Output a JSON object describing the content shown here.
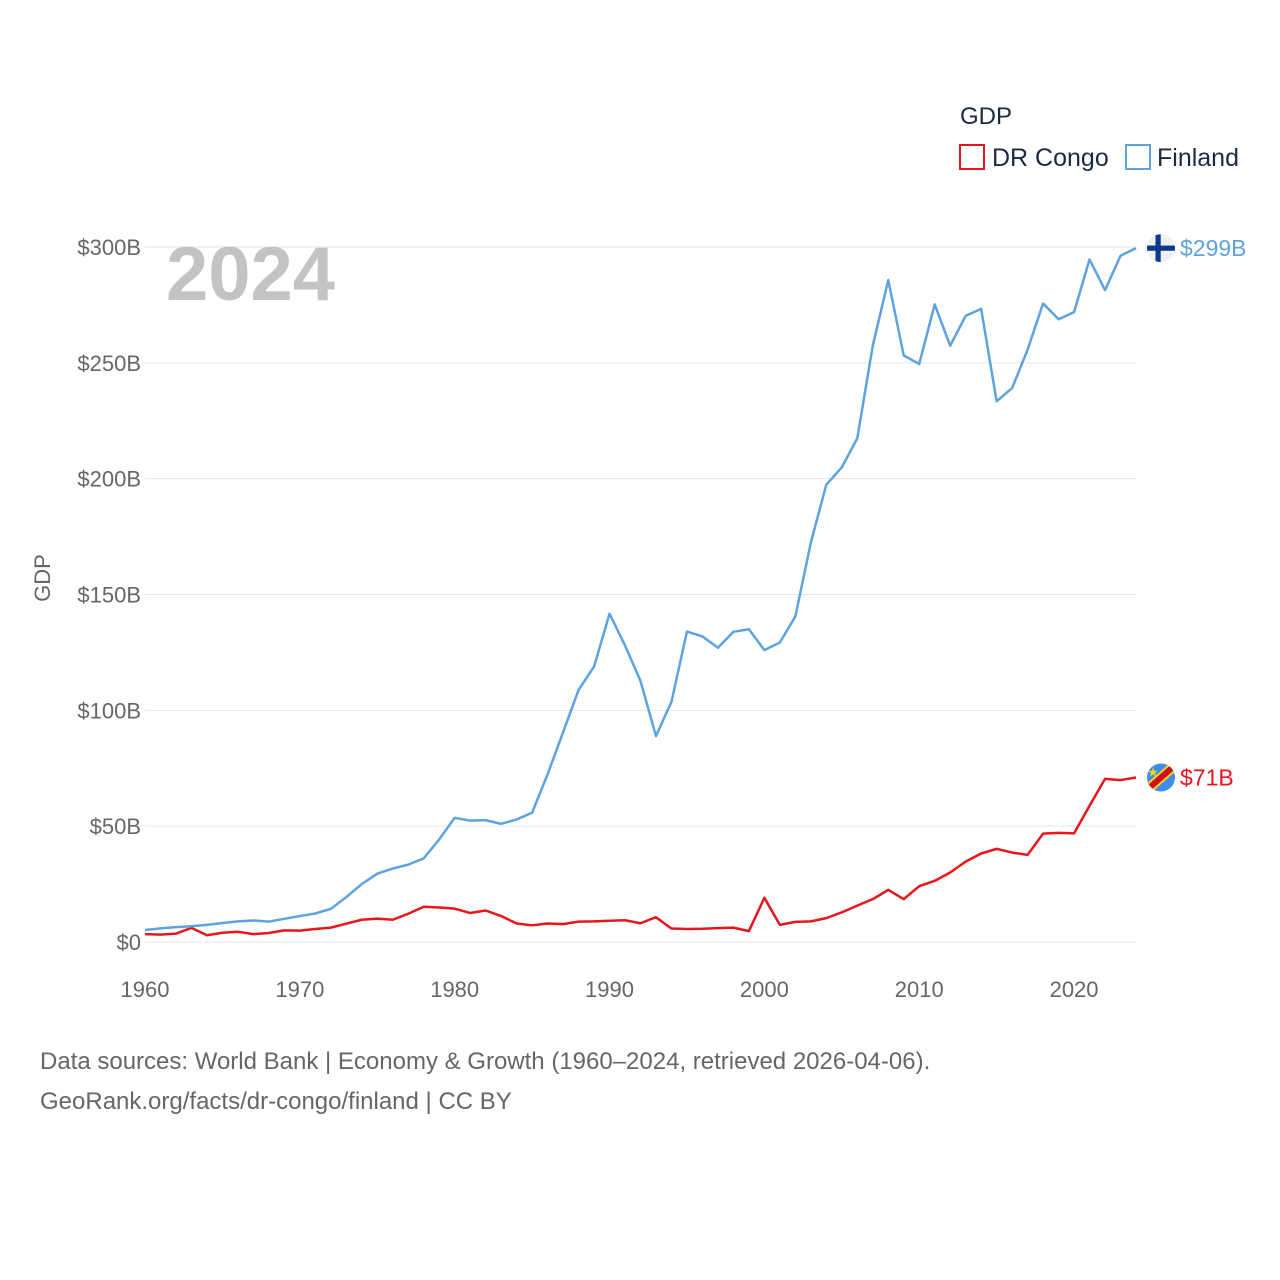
{
  "chart_data": {
    "type": "line",
    "title": "GDP",
    "ylabel": "GDP",
    "year_label": "2024",
    "ylim": [
      0,
      300
    ],
    "xlim": [
      1960,
      2024
    ],
    "y_ticks": [
      {
        "value": 0,
        "label": "$0"
      },
      {
        "value": 50,
        "label": "$50B"
      },
      {
        "value": 100,
        "label": "$100B"
      },
      {
        "value": 150,
        "label": "$150B"
      },
      {
        "value": 200,
        "label": "$200B"
      },
      {
        "value": 250,
        "label": "$250B"
      },
      {
        "value": 300,
        "label": "$300B"
      }
    ],
    "x_ticks": [
      {
        "value": 1960,
        "label": "1960"
      },
      {
        "value": 1970,
        "label": "1970"
      },
      {
        "value": 1980,
        "label": "1980"
      },
      {
        "value": 1990,
        "label": "1990"
      },
      {
        "value": 2000,
        "label": "2000"
      },
      {
        "value": 2010,
        "label": "2010"
      },
      {
        "value": 2020,
        "label": "2020"
      }
    ],
    "x_start": 1960,
    "series": [
      {
        "name": "DR Congo",
        "color": "#e8161c",
        "end_label": "$71B",
        "flag": "drc-flag-icon",
        "values": [
          3.4,
          3.2,
          3.6,
          6.1,
          2.9,
          4.0,
          4.4,
          3.4,
          3.9,
          5.0,
          4.9,
          5.6,
          6.2,
          7.9,
          9.6,
          10.1,
          9.6,
          12.2,
          15.2,
          14.9,
          14.4,
          12.5,
          13.6,
          11.2,
          8.0,
          7.2,
          8.0,
          7.7,
          8.8,
          8.9,
          9.2,
          9.4,
          8.1,
          10.7,
          5.8,
          5.6,
          5.7,
          6.0,
          6.2,
          4.7,
          19.1,
          7.4,
          8.7,
          8.9,
          10.3,
          12.8,
          15.7,
          18.5,
          22.5,
          18.5,
          24.1,
          26.4,
          30.0,
          34.7,
          38.2,
          40.2,
          38.6,
          37.6,
          46.8,
          47.1,
          46.9,
          58.8,
          70.4,
          69.9,
          71.0
        ]
      },
      {
        "name": "Finland",
        "color": "#5fa2e0",
        "end_label": "$299B",
        "flag": "finland-flag-icon",
        "values": [
          5.2,
          5.9,
          6.4,
          6.8,
          7.4,
          8.2,
          8.9,
          9.3,
          8.8,
          10.0,
          11.2,
          12.3,
          14.3,
          19.4,
          25.0,
          29.5,
          31.7,
          33.4,
          36.1,
          44.3,
          53.6,
          52.4,
          52.6,
          51.0,
          52.9,
          55.8,
          72.4,
          90.5,
          108.8,
          118.9,
          141.7,
          128.0,
          112.7,
          88.9,
          103.7,
          134.0,
          131.9,
          127.0,
          133.9,
          135.0,
          126.0,
          129.3,
          140.5,
          172.4,
          197.4,
          204.9,
          217.4,
          257.4,
          285.7,
          253.2,
          249.5,
          275.2,
          257.4,
          270.3,
          273.3,
          233.4,
          239.1,
          255.7,
          275.6,
          268.8,
          271.9,
          294.6,
          281.4,
          296.2,
          299.5
        ]
      }
    ]
  },
  "legend": {
    "title": "GDP",
    "items": [
      {
        "name": "DR Congo",
        "color": "#e8161c"
      },
      {
        "name": "Finland",
        "color": "#5fa2e0"
      }
    ]
  },
  "footer": {
    "line1": "Data sources: World Bank | Economy & Growth (1960–2024, retrieved 2026-04-06).",
    "line2": "GeoRank.org/facts/dr-congo/finland | CC BY"
  }
}
